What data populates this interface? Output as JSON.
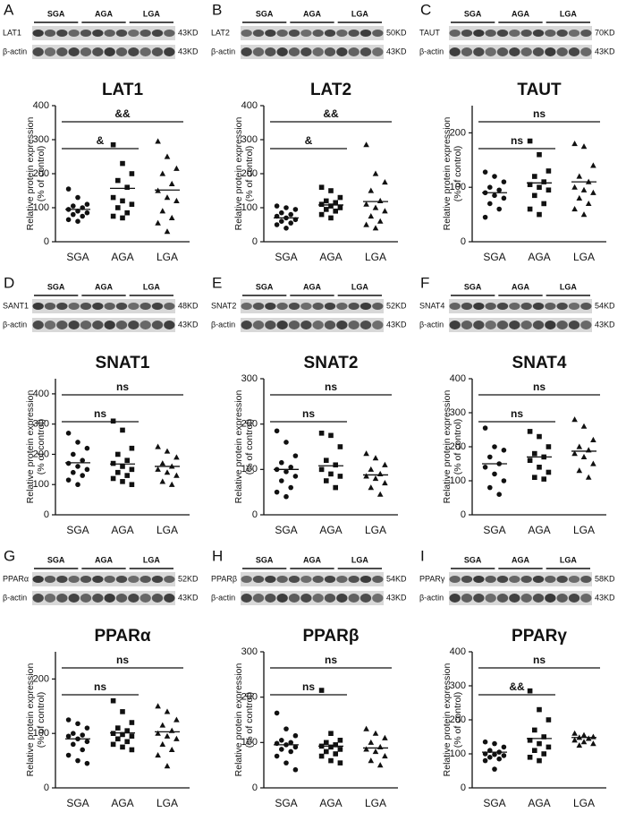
{
  "chart_data": [
    {
      "type": "strip",
      "panel": "A",
      "title": "LAT1",
      "y_label": [
        "Relative protein expression",
        "(% of control)"
      ],
      "blot": {
        "group_labels": [
          "SGA",
          "AGA",
          "LGA"
        ],
        "rows": [
          {
            "protein": "LAT1",
            "size": "43KD"
          },
          {
            "protein": "β-actin",
            "size": "43KD"
          }
        ]
      },
      "categories": [
        "SGA",
        "AGA",
        "LGA"
      ],
      "markers": [
        "circle",
        "square",
        "triangle"
      ],
      "values": [
        [
          155,
          130,
          110,
          105,
          100,
          95,
          90,
          85,
          80,
          75,
          65,
          60
        ],
        [
          285,
          230,
          200,
          180,
          160,
          130,
          120,
          110,
          100,
          85,
          75,
          70
        ],
        [
          295,
          250,
          215,
          200,
          170,
          150,
          130,
          120,
          90,
          70,
          55,
          30
        ]
      ],
      "means": [
        95,
        157,
        152
      ],
      "ylim": [
        0,
        400
      ],
      "yticks": [
        0,
        100,
        200,
        300,
        400
      ],
      "annotations": [
        {
          "label": "&&",
          "between": [
            0,
            2
          ]
        },
        {
          "label": "&",
          "between": [
            0,
            1
          ]
        }
      ]
    },
    {
      "type": "strip",
      "panel": "B",
      "title": "LAT2",
      "y_label": [
        "Relative protein expression",
        "(% of control)"
      ],
      "blot": {
        "group_labels": [
          "SGA",
          "AGA",
          "LGA"
        ],
        "rows": [
          {
            "protein": "LAT2",
            "size": "50KD"
          },
          {
            "protein": "β-actin",
            "size": "43KD"
          }
        ]
      },
      "categories": [
        "SGA",
        "AGA",
        "LGA"
      ],
      "markers": [
        "circle",
        "square",
        "triangle"
      ],
      "values": [
        [
          105,
          100,
          95,
          85,
          80,
          75,
          70,
          65,
          60,
          55,
          50,
          40
        ],
        [
          160,
          150,
          130,
          120,
          115,
          110,
          105,
          100,
          95,
          90,
          80,
          70
        ],
        [
          285,
          200,
          175,
          150,
          120,
          110,
          100,
          90,
          75,
          60,
          50,
          40
        ]
      ],
      "means": [
        70,
        108,
        118
      ],
      "ylim": [
        0,
        400
      ],
      "yticks": [
        0,
        100,
        200,
        300,
        400
      ],
      "annotations": [
        {
          "label": "&&",
          "between": [
            0,
            2
          ]
        },
        {
          "label": "&",
          "between": [
            0,
            1
          ]
        }
      ]
    },
    {
      "type": "strip",
      "panel": "C",
      "title": "TAUT",
      "y_label": [
        "Relative protein expression",
        "(% of control)"
      ],
      "blot": {
        "group_labels": [
          "SGA",
          "AGA",
          "LGA"
        ],
        "rows": [
          {
            "protein": "TAUT",
            "size": "70KD"
          },
          {
            "protein": "β-actin",
            "size": "43KD"
          }
        ]
      },
      "categories": [
        "SGA",
        "AGA",
        "LGA"
      ],
      "markers": [
        "circle",
        "square",
        "triangle"
      ],
      "values": [
        [
          128,
          120,
          110,
          100,
          95,
          90,
          85,
          80,
          70,
          60,
          45
        ],
        [
          185,
          160,
          130,
          120,
          110,
          105,
          100,
          95,
          85,
          70,
          60,
          50
        ],
        [
          180,
          175,
          140,
          120,
          110,
          100,
          95,
          90,
          80,
          70,
          60,
          50
        ]
      ],
      "means": [
        90,
        108,
        110
      ],
      "ylim": [
        0,
        250
      ],
      "yticks": [
        0,
        100,
        200
      ],
      "annotations": [
        {
          "label": "ns",
          "between": [
            0,
            2
          ]
        },
        {
          "label": "ns",
          "between": [
            0,
            1
          ]
        }
      ]
    },
    {
      "type": "strip",
      "panel": "D",
      "title": "SNAT1",
      "y_label": [
        "Relative protein expression",
        "(% of control)"
      ],
      "blot": {
        "group_labels": [
          "SGA",
          "AGA",
          "LGA"
        ],
        "rows": [
          {
            "protein": "SANT1",
            "size": "48KD"
          },
          {
            "protein": "β-actin",
            "size": "43KD"
          }
        ]
      },
      "categories": [
        "SGA",
        "AGA",
        "LGA"
      ],
      "markers": [
        "circle",
        "square",
        "triangle"
      ],
      "values": [
        [
          270,
          240,
          220,
          200,
          180,
          170,
          160,
          150,
          140,
          130,
          115,
          100
        ],
        [
          310,
          280,
          220,
          200,
          180,
          170,
          160,
          150,
          140,
          130,
          120,
          110,
          100
        ],
        [
          225,
          210,
          190,
          170,
          160,
          150,
          140,
          130,
          110,
          100
        ]
      ],
      "means": [
        172,
        168,
        160
      ],
      "ylim": [
        0,
        450
      ],
      "yticks": [
        0,
        100,
        200,
        300,
        400
      ],
      "annotations": [
        {
          "label": "ns",
          "between": [
            0,
            2
          ]
        },
        {
          "label": "ns",
          "between": [
            0,
            1
          ]
        }
      ]
    },
    {
      "type": "strip",
      "panel": "E",
      "title": "SNAT2",
      "y_label": [
        "Relative protein expression",
        "(% of control)"
      ],
      "blot": {
        "group_labels": [
          "SGA",
          "AGA",
          "LGA"
        ],
        "rows": [
          {
            "protein": "SNAT2",
            "size": "52KD"
          },
          {
            "protein": "β-actin",
            "size": "43KD"
          }
        ]
      },
      "categories": [
        "SGA",
        "AGA",
        "LGA"
      ],
      "markers": [
        "circle",
        "square",
        "triangle"
      ],
      "values": [
        [
          185,
          160,
          130,
          115,
          105,
          100,
          95,
          85,
          75,
          60,
          50,
          40
        ],
        [
          180,
          175,
          150,
          120,
          110,
          100,
          90,
          85,
          75,
          60
        ],
        [
          135,
          125,
          110,
          100,
          90,
          85,
          80,
          70,
          60,
          45
        ]
      ],
      "means": [
        100,
        108,
        88
      ],
      "ylim": [
        0,
        300
      ],
      "yticks": [
        0,
        100,
        200,
        300
      ],
      "annotations": [
        {
          "label": "ns",
          "between": [
            0,
            2
          ]
        },
        {
          "label": "ns",
          "between": [
            0,
            1
          ]
        }
      ]
    },
    {
      "type": "strip",
      "panel": "F",
      "title": "SNAT4",
      "y_label": [
        "Relative protein expression",
        "(% of control)"
      ],
      "blot": {
        "group_labels": [
          "SGA",
          "AGA",
          "LGA"
        ],
        "rows": [
          {
            "protein": "SNAT4",
            "size": "54KD"
          },
          {
            "protein": "β-actin",
            "size": "43KD"
          }
        ]
      },
      "categories": [
        "SGA",
        "AGA",
        "LGA"
      ],
      "markers": [
        "circle",
        "square",
        "triangle"
      ],
      "values": [
        [
          255,
          200,
          190,
          170,
          150,
          140,
          120,
          100,
          80,
          60
        ],
        [
          245,
          230,
          200,
          180,
          170,
          160,
          140,
          125,
          110,
          105
        ],
        [
          280,
          260,
          220,
          200,
          190,
          180,
          170,
          150,
          130,
          110
        ]
      ],
      "means": [
        150,
        170,
        187
      ],
      "ylim": [
        0,
        400
      ],
      "yticks": [
        0,
        100,
        200,
        300,
        400
      ],
      "annotations": [
        {
          "label": "ns",
          "between": [
            0,
            2
          ]
        },
        {
          "label": "ns",
          "between": [
            0,
            1
          ]
        }
      ]
    },
    {
      "type": "strip",
      "panel": "G",
      "title": "PPARα",
      "y_label": [
        "Relative protein expression",
        "(% of control)"
      ],
      "blot": {
        "group_labels": [
          "SGA",
          "AGA",
          "LGA"
        ],
        "rows": [
          {
            "protein": "PPARα",
            "size": "52KD"
          },
          {
            "protein": "β-actin",
            "size": "43KD"
          }
        ]
      },
      "categories": [
        "SGA",
        "AGA",
        "LGA"
      ],
      "markers": [
        "circle",
        "square",
        "triangle"
      ],
      "values": [
        [
          125,
          118,
          110,
          100,
          97,
          95,
          90,
          85,
          80,
          70,
          60,
          50,
          45
        ],
        [
          160,
          140,
          120,
          110,
          105,
          100,
          98,
          95,
          90,
          85,
          80,
          75,
          70
        ],
        [
          150,
          140,
          125,
          115,
          105,
          100,
          95,
          90,
          80,
          70,
          60,
          40
        ]
      ],
      "means": [
        90,
        101,
        103
      ],
      "ylim": [
        0,
        250
      ],
      "yticks": [
        0,
        100,
        200
      ],
      "annotations": [
        {
          "label": "ns",
          "between": [
            0,
            2
          ]
        },
        {
          "label": "ns",
          "between": [
            0,
            1
          ]
        }
      ]
    },
    {
      "type": "strip",
      "panel": "H",
      "title": "PPARβ",
      "y_label": [
        "Relative protein expression",
        "(% of control)"
      ],
      "blot": {
        "group_labels": [
          "SGA",
          "AGA",
          "LGA"
        ],
        "rows": [
          {
            "protein": "PPARβ",
            "size": "54KD"
          },
          {
            "protein": "β-actin",
            "size": "43KD"
          }
        ]
      },
      "categories": [
        "SGA",
        "AGA",
        "LGA"
      ],
      "markers": [
        "circle",
        "square",
        "triangle"
      ],
      "values": [
        [
          165,
          130,
          115,
          105,
          100,
          98,
          95,
          90,
          85,
          80,
          70,
          55,
          40
        ],
        [
          215,
          120,
          105,
          100,
          95,
          92,
          90,
          85,
          80,
          75,
          70,
          60,
          55
        ],
        [
          130,
          120,
          110,
          100,
          90,
          85,
          80,
          70,
          60,
          50
        ]
      ],
      "means": [
        95,
        92,
        88
      ],
      "ylim": [
        0,
        300
      ],
      "yticks": [
        0,
        100,
        200,
        300
      ],
      "annotations": [
        {
          "label": "ns",
          "between": [
            0,
            2
          ]
        },
        {
          "label": "ns",
          "between": [
            0,
            1
          ]
        }
      ]
    },
    {
      "type": "strip",
      "panel": "I",
      "title": "PPARγ",
      "y_label": [
        "Relative protein expression",
        "(% of control)"
      ],
      "blot": {
        "group_labels": [
          "SGA",
          "AGA",
          "LGA"
        ],
        "rows": [
          {
            "protein": "PPARγ",
            "size": "58KD"
          },
          {
            "protein": "β-actin",
            "size": "43KD"
          }
        ]
      },
      "categories": [
        "SGA",
        "AGA",
        "LGA"
      ],
      "markers": [
        "circle",
        "square",
        "triangle"
      ],
      "values": [
        [
          135,
          130,
          120,
          110,
          105,
          100,
          98,
          95,
          90,
          85,
          80,
          55
        ],
        [
          285,
          230,
          200,
          170,
          150,
          140,
          130,
          120,
          110,
          100,
          90,
          80
        ],
        [
          160,
          155,
          150,
          148,
          145,
          140,
          135,
          130,
          125
        ]
      ],
      "means": [
        105,
        145,
        148
      ],
      "ylim": [
        0,
        400
      ],
      "yticks": [
        0,
        100,
        200,
        300,
        400
      ],
      "annotations": [
        {
          "label": "ns",
          "between": [
            0,
            2
          ]
        },
        {
          "label": "&&",
          "between": [
            0,
            1
          ]
        }
      ]
    }
  ]
}
